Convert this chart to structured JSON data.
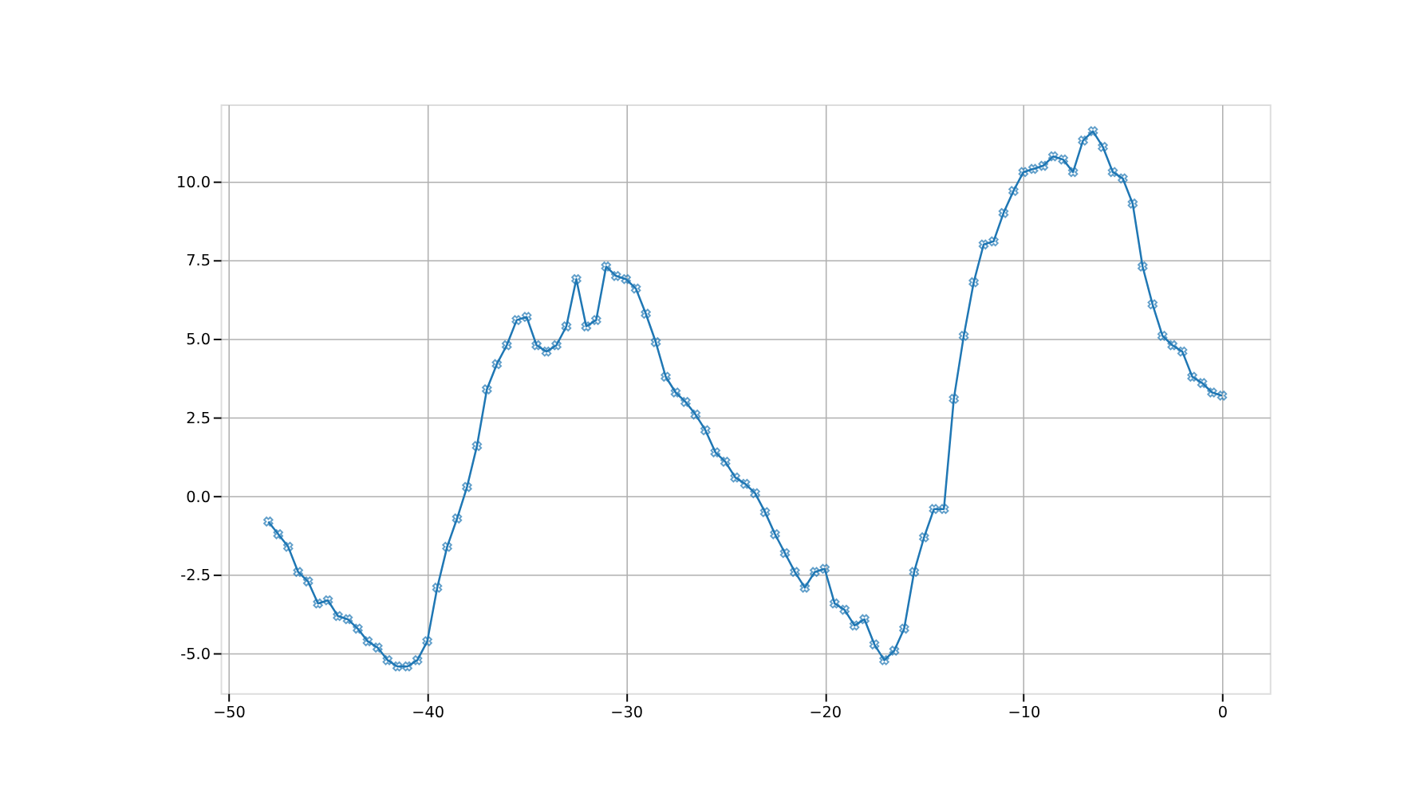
{
  "chart_data": {
    "type": "line",
    "marker": "cross",
    "grid": true,
    "line_style": "solid",
    "x": [
      -48,
      -47.5,
      -47,
      -46.5,
      -46,
      -45.5,
      -45,
      -44.5,
      -44,
      -43.5,
      -43,
      -42.5,
      -42,
      -41.5,
      -41,
      -40.5,
      -40,
      -39.5,
      -39,
      -38.5,
      -38,
      -37.5,
      -37,
      -36.5,
      -36,
      -35.5,
      -35,
      -34.5,
      -34,
      -33.5,
      -33,
      -32.5,
      -32,
      -31.5,
      -31,
      -30.5,
      -30,
      -29.5,
      -29,
      -28.5,
      -28,
      -27.5,
      -27,
      -26.5,
      -26,
      -25.5,
      -25,
      -24.5,
      -24,
      -23.5,
      -23,
      -22.5,
      -22,
      -21.5,
      -21,
      -20.5,
      -20,
      -19.5,
      -19,
      -18.5,
      -18,
      -17.5,
      -17,
      -16.5,
      -16,
      -15.5,
      -15,
      -14.5,
      -14,
      -13.5,
      -13,
      -12.5,
      -12,
      -11.5,
      -11,
      -10.5,
      -10,
      -9.5,
      -9,
      -8.5,
      -8,
      -7.5,
      -7,
      -6.5,
      -6,
      -5.5,
      -5,
      -4.5,
      -4,
      -3.5,
      -3,
      -2.5,
      -2,
      -1.5,
      -1,
      -0.5,
      0
    ],
    "series": [
      {
        "color": "#1f77b4",
        "values": [
          -0.8,
          -1.2,
          -1.6,
          -2.4,
          -2.7,
          -3.4,
          -3.3,
          -3.8,
          -3.9,
          -4.2,
          -4.6,
          -4.8,
          -5.2,
          -5.4,
          -5.4,
          -5.2,
          -4.6,
          -2.9,
          -1.6,
          -0.7,
          0.3,
          1.6,
          3.4,
          4.2,
          4.8,
          5.6,
          5.7,
          4.8,
          4.6,
          4.8,
          5.4,
          6.9,
          5.4,
          5.6,
          7.3,
          7.0,
          6.9,
          6.6,
          5.8,
          4.9,
          3.8,
          3.3,
          3.0,
          2.6,
          2.1,
          1.4,
          1.1,
          0.6,
          0.4,
          0.1,
          -0.5,
          -1.2,
          -1.8,
          -2.4,
          -2.9,
          -2.4,
          -2.3,
          -3.4,
          -3.6,
          -4.1,
          -3.9,
          -4.7,
          -5.2,
          -4.9,
          -4.2,
          -2.4,
          -1.3,
          -0.4,
          -0.4,
          3.1,
          5.1,
          6.8,
          8.0,
          8.1,
          9.0,
          9.7,
          10.3,
          10.4,
          10.5,
          10.8,
          10.7,
          10.3,
          11.3,
          11.6,
          11.1,
          10.3,
          10.1,
          9.3,
          7.3,
          6.1,
          5.1,
          4.8,
          4.6,
          3.8,
          3.6,
          3.3,
          3.2
        ]
      }
    ],
    "xlim": [
      -50.4,
      2.4
    ],
    "xticks": [
      -50,
      -40,
      -30,
      -20,
      -10,
      0
    ],
    "ylim": [
      -6.25,
      12.45
    ],
    "yticks": [
      {
        "value": -5,
        "label": "-5.0"
      },
      {
        "value": -2.5,
        "label": "-2.5"
      },
      {
        "value": 0,
        "label": "0.0"
      },
      {
        "value": 2.5,
        "label": "2.5"
      },
      {
        "value": 5,
        "label": "5.0"
      },
      {
        "value": 7.5,
        "label": "7.5"
      },
      {
        "value": 10,
        "label": "10.0"
      }
    ]
  }
}
